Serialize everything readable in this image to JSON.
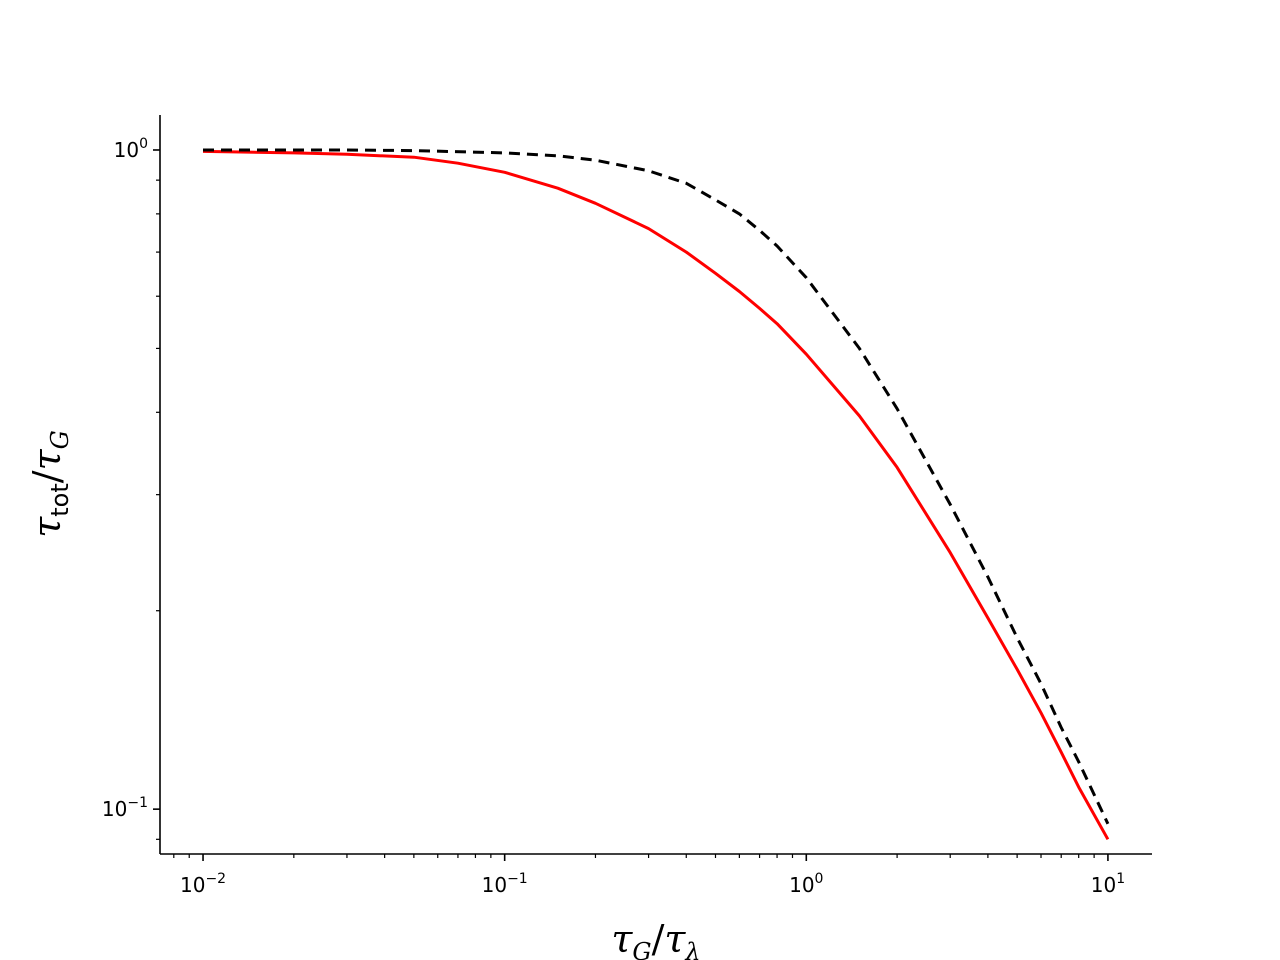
{
  "chart_data": {
    "type": "line",
    "xscale": "log",
    "yscale": "log",
    "xlim": [
      0.0072,
      14
    ],
    "ylim": [
      0.0855,
      1.13
    ],
    "grid": false,
    "legend": "none",
    "xlabel": {
      "base": "τ",
      "base_sub": "G",
      "slash": "/",
      "denom": "τ",
      "denom_sub": "λ"
    },
    "ylabel": {
      "base": "τ",
      "base_sub": "tot",
      "slash": "/",
      "denom": "τ",
      "denom_sub": "G"
    },
    "x_ticks": [
      {
        "value": 0.01,
        "base": "10",
        "exp": "−2"
      },
      {
        "value": 0.1,
        "base": "10",
        "exp": "−1"
      },
      {
        "value": 1,
        "base": "10",
        "exp": "0"
      },
      {
        "value": 10,
        "base": "10",
        "exp": "1"
      }
    ],
    "y_ticks": [
      {
        "value": 1,
        "base": "10",
        "exp": "0"
      },
      {
        "value": 0.1,
        "base": "10",
        "exp": "−1"
      }
    ],
    "series": [
      {
        "color": "#ff0000",
        "style": "solid",
        "x": [
          0.01,
          0.02,
          0.03,
          0.05,
          0.07,
          0.1,
          0.15,
          0.2,
          0.3,
          0.4,
          0.5,
          0.6,
          0.7,
          0.8,
          1.0,
          1.5,
          2.0,
          3.0,
          4.0,
          5.0,
          6.0,
          7.0,
          8.0,
          10.0
        ],
        "values": [
          0.995,
          0.99,
          0.985,
          0.975,
          0.955,
          0.925,
          0.875,
          0.83,
          0.76,
          0.7,
          0.65,
          0.61,
          0.575,
          0.545,
          0.49,
          0.395,
          0.33,
          0.245,
          0.195,
          0.163,
          0.14,
          0.122,
          0.108,
          0.09
        ]
      },
      {
        "color": "#000000",
        "style": "dashed",
        "x": [
          0.01,
          0.03,
          0.05,
          0.1,
          0.15,
          0.2,
          0.3,
          0.4,
          0.5,
          0.6,
          0.7,
          0.8,
          1.0,
          1.5,
          2.0,
          3.0,
          4.0,
          5.0,
          6.0,
          7.0,
          8.0,
          10.0
        ],
        "values": [
          1.0,
          1.0,
          0.998,
          0.99,
          0.98,
          0.965,
          0.93,
          0.89,
          0.84,
          0.8,
          0.755,
          0.715,
          0.64,
          0.5,
          0.405,
          0.29,
          0.225,
          0.182,
          0.155,
          0.133,
          0.118,
          0.095
        ]
      }
    ]
  }
}
